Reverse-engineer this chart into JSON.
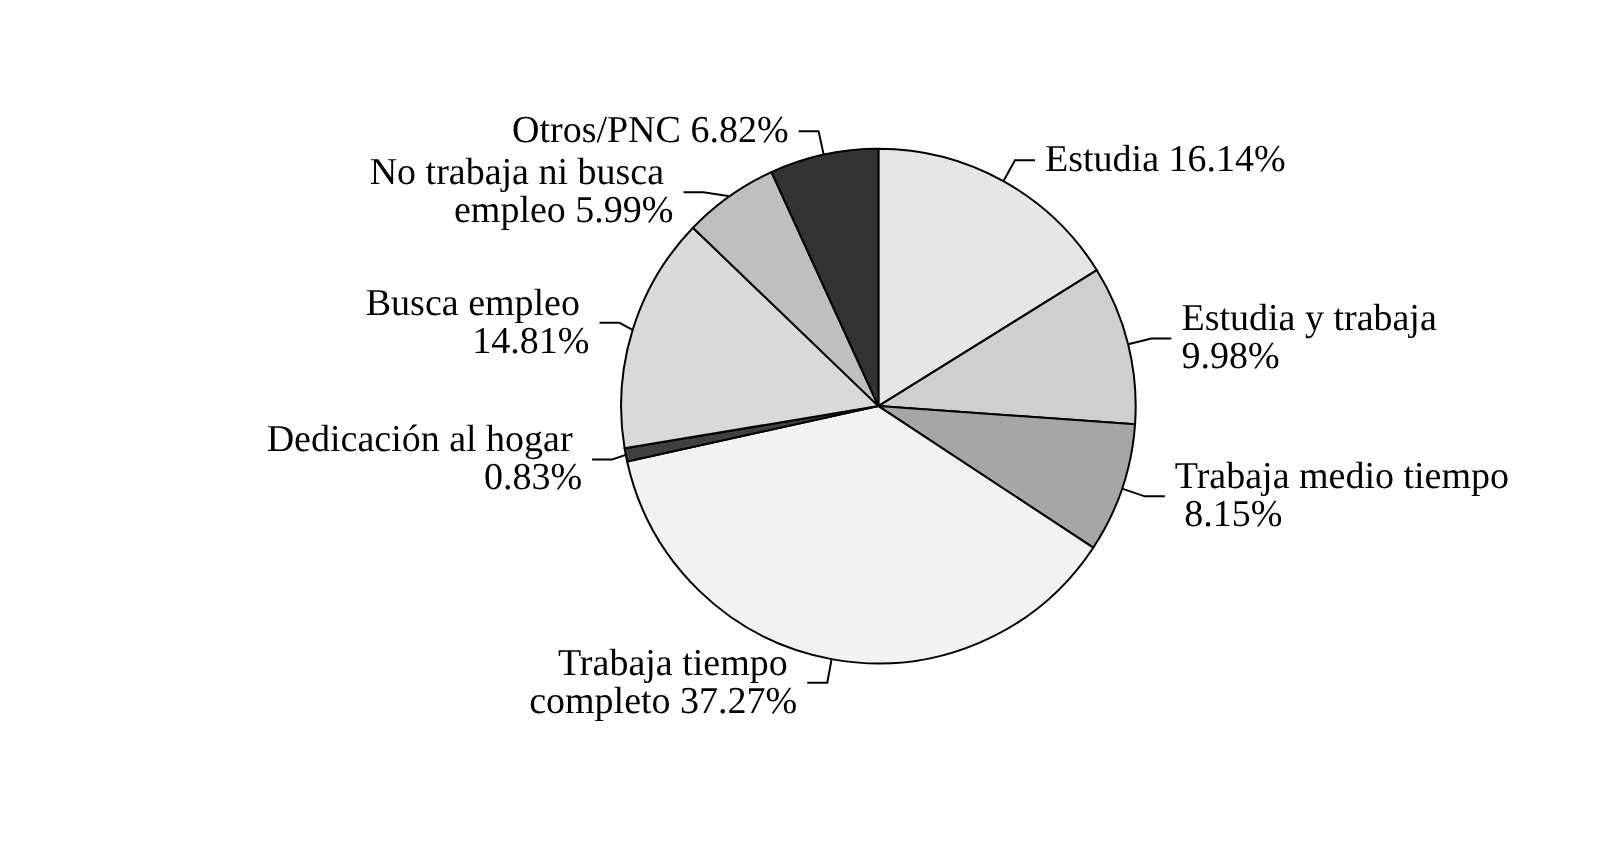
{
  "chart_data": {
    "type": "pie",
    "categories": [
      "Estudia",
      "Estudia y trabaja",
      "Trabaja medio tiempo",
      "Trabaja tiempo completo",
      "Dedicación al hogar",
      "Busca empleo",
      "No trabaja ni busca empleo",
      "Otros/PNC"
    ],
    "values": [
      16.14,
      9.98,
      8.15,
      37.27,
      0.83,
      14.81,
      5.99,
      6.82
    ],
    "value_labels": [
      "16.14%",
      "9.98%",
      "8.15%",
      "37.27%",
      "0.83%",
      "14.81%",
      "5.99%",
      "6.82%"
    ],
    "colors": [
      "#e6e6e6",
      "#cfcfcf",
      "#a6a6a6",
      "#f2f2f2",
      "#404040",
      "#d9d9d9",
      "#bfbfbf",
      "#333333"
    ],
    "legend": false
  }
}
